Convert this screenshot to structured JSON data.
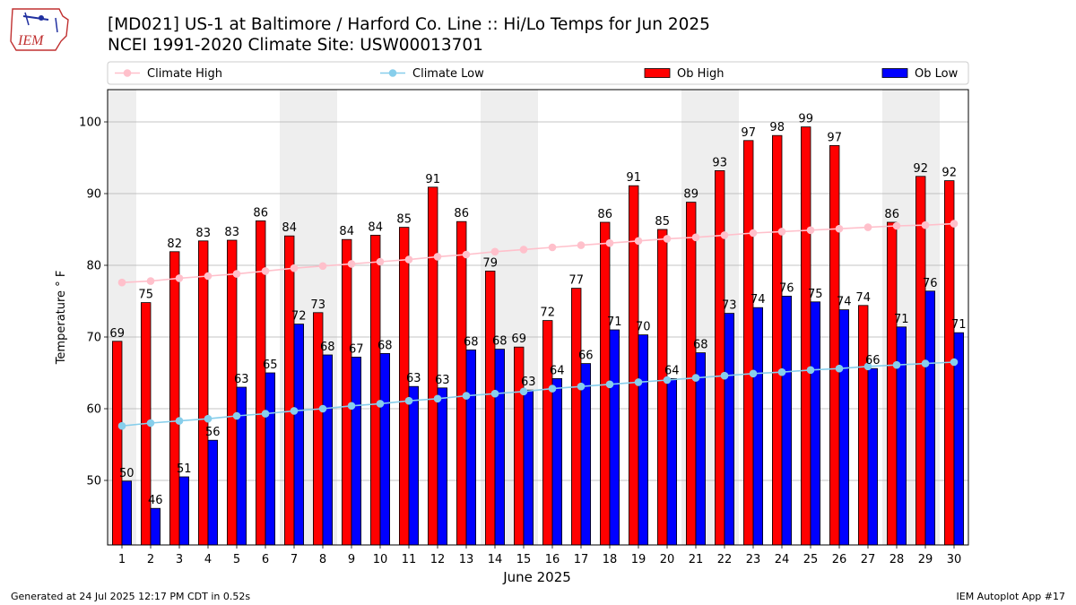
{
  "header": {
    "title": "[MD021] US-1 at Baltimore / Harford Co. Line :: Hi/Lo Temps for Jun 2025",
    "subtitle": "NCEI 1991-2020 Climate Site: USW00013701",
    "logo_text": "IEM"
  },
  "footer": {
    "left": "Generated at 24 Jul 2025 12:17 PM CDT in 0.52s",
    "right": "IEM Autoplot App #17"
  },
  "chart_data": {
    "type": "bar",
    "xlabel": "June 2025",
    "ylabel": "Temperature ° F",
    "ylim": [
      41,
      104.5
    ],
    "yticks": [
      50,
      60,
      70,
      80,
      90,
      100
    ],
    "grid": "horizontal",
    "legend_position": "top",
    "categories": [
      "1",
      "2",
      "3",
      "4",
      "5",
      "6",
      "7",
      "8",
      "9",
      "10",
      "11",
      "12",
      "13",
      "14",
      "15",
      "16",
      "17",
      "18",
      "19",
      "20",
      "21",
      "22",
      "23",
      "24",
      "25",
      "26",
      "27",
      "28",
      "29",
      "30"
    ],
    "weekend_days": [
      1,
      7,
      8,
      14,
      15,
      21,
      22,
      28,
      29
    ],
    "series": [
      {
        "name": "Ob High",
        "kind": "bar",
        "color": "#ff0000",
        "values": [
          69.4,
          74.8,
          81.9,
          83.4,
          83.5,
          86.2,
          84.1,
          73.4,
          83.6,
          84.2,
          85.3,
          90.9,
          86.1,
          79.2,
          68.6,
          72.3,
          76.8,
          86.0,
          91.1,
          85.0,
          88.8,
          93.2,
          97.4,
          98.1,
          99.3,
          96.7,
          74.4,
          86.0,
          92.4,
          91.8
        ],
        "labels": [
          "69",
          "75",
          "82",
          "83",
          "83",
          "86",
          "84",
          "73",
          "84",
          "84",
          "85",
          "91",
          "86",
          "79",
          "69",
          "72",
          "77",
          "86",
          "91",
          "85",
          "89",
          "93",
          "97",
          "98",
          "99",
          "97",
          "74",
          "86",
          "92",
          "92"
        ]
      },
      {
        "name": "Ob Low",
        "kind": "bar",
        "color": "#0000ff",
        "values": [
          49.9,
          46.1,
          50.5,
          55.6,
          63.0,
          65.0,
          71.8,
          67.5,
          67.2,
          67.7,
          63.1,
          62.9,
          68.2,
          68.3,
          62.6,
          64.2,
          66.3,
          71.0,
          70.3,
          64.2,
          67.8,
          73.3,
          74.1,
          75.7,
          74.9,
          73.8,
          65.6,
          71.4,
          76.4,
          70.6
        ],
        "labels": [
          "50",
          "46",
          "51",
          "56",
          "63",
          "65",
          "72",
          "68",
          "67",
          "68",
          "63",
          "63",
          "68",
          "68",
          "63",
          "64",
          "66",
          "71",
          "70",
          "64",
          "68",
          "73",
          "74",
          "76",
          "75",
          "74",
          "66",
          "71",
          "76",
          "71"
        ]
      },
      {
        "name": "Climate High",
        "kind": "line",
        "color": "#ffc0cb",
        "values": [
          77.6,
          77.8,
          78.2,
          78.5,
          78.8,
          79.2,
          79.6,
          79.9,
          80.2,
          80.5,
          80.8,
          81.2,
          81.5,
          81.9,
          82.2,
          82.5,
          82.8,
          83.1,
          83.4,
          83.7,
          83.9,
          84.2,
          84.5,
          84.7,
          84.9,
          85.1,
          85.3,
          85.5,
          85.6,
          85.8
        ]
      },
      {
        "name": "Climate Low",
        "kind": "line",
        "color": "#87ceeb",
        "values": [
          57.6,
          58.0,
          58.3,
          58.6,
          59.0,
          59.3,
          59.7,
          60.0,
          60.4,
          60.7,
          61.1,
          61.4,
          61.8,
          62.1,
          62.4,
          62.8,
          63.1,
          63.4,
          63.7,
          64.0,
          64.3,
          64.6,
          64.9,
          65.1,
          65.4,
          65.6,
          65.9,
          66.1,
          66.3,
          66.5
        ]
      }
    ]
  }
}
